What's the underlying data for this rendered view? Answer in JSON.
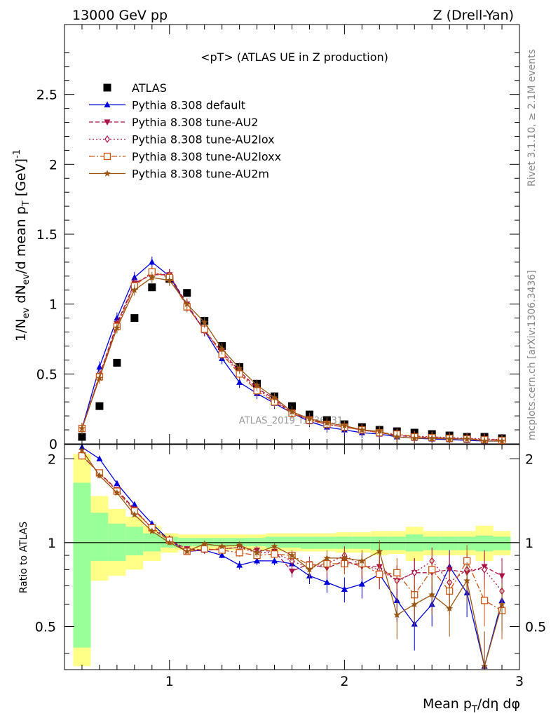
{
  "header": {
    "left": "13000 GeV pp",
    "right": "Z (Drell-Yan)"
  },
  "side_labels": {
    "rivet": "Rivet 3.1.10, ≥ 2.1M events",
    "mcplots": "mcplots.cern.ch [arXiv:1306.3436]"
  },
  "watermark": "ATLAS_2019_I1736531",
  "colors": {
    "atlas": "#000000",
    "default": "#0000dd",
    "au2": "#aa1144",
    "au2lox": "#aa1144",
    "au2loxx": "#cc5511",
    "au2m": "#995511",
    "band_inner": "#99ff99",
    "band_outer": "#ffff88"
  },
  "chart_data": [
    {
      "type": "scatter",
      "title": "<pT> (ATLAS UE in Z production)",
      "ylabel": "1/N_ev dN_ev/d mean p_T [GeV]^-1",
      "xlim": [
        0.4,
        3.0
      ],
      "ylim": [
        0,
        3.0
      ],
      "yticks": [
        "0",
        "0.5",
        "1",
        "1.5",
        "2",
        "2.5"
      ],
      "legend_position": "top-left",
      "x": [
        0.5,
        0.6,
        0.7,
        0.8,
        0.9,
        1.0,
        1.1,
        1.2,
        1.3,
        1.4,
        1.5,
        1.6,
        1.7,
        1.8,
        1.9,
        2.0,
        2.1,
        2.2,
        2.3,
        2.4,
        2.5,
        2.6,
        2.7,
        2.8,
        2.9
      ],
      "series": [
        {
          "name": "ATLAS",
          "key": "atlas",
          "marker": "square",
          "values": [
            0.05,
            0.27,
            0.58,
            0.9,
            1.12,
            1.18,
            1.08,
            0.88,
            0.7,
            0.55,
            0.43,
            0.34,
            0.27,
            0.21,
            0.17,
            0.14,
            0.12,
            0.1,
            0.09,
            0.08,
            0.07,
            0.06,
            0.05,
            0.05,
            0.04
          ]
        },
        {
          "name": "Pythia 8.308 default",
          "key": "default",
          "marker": "triangle-up",
          "dash": "",
          "values": [
            0.11,
            0.55,
            0.9,
            1.19,
            1.3,
            1.2,
            0.99,
            0.81,
            0.61,
            0.44,
            0.36,
            0.29,
            0.22,
            0.16,
            0.12,
            0.1,
            0.08,
            0.07,
            0.05,
            0.04,
            0.035,
            0.03,
            0.025,
            0.02,
            0.02
          ]
        },
        {
          "name": "Pythia 8.308 tune-AU2",
          "key": "au2",
          "marker": "triangle-down",
          "dash": "6,3",
          "values": [
            0.11,
            0.49,
            0.86,
            1.15,
            1.21,
            1.21,
            1.0,
            0.81,
            0.66,
            0.52,
            0.4,
            0.32,
            0.22,
            0.18,
            0.14,
            0.12,
            0.1,
            0.08,
            0.06,
            0.05,
            0.045,
            0.04,
            0.035,
            0.03,
            0.03
          ]
        },
        {
          "name": "Pythia 8.308 tune-AU2lox",
          "key": "au2lox",
          "marker": "diamond",
          "dash": "2,3",
          "values": [
            0.11,
            0.48,
            0.85,
            1.14,
            1.22,
            1.21,
            0.99,
            0.81,
            0.65,
            0.51,
            0.39,
            0.31,
            0.22,
            0.17,
            0.14,
            0.12,
            0.1,
            0.08,
            0.065,
            0.055,
            0.05,
            0.045,
            0.04,
            0.035,
            0.03
          ]
        },
        {
          "name": "Pythia 8.308 tune-AU2loxx",
          "key": "au2loxx",
          "marker": "square-open",
          "dash": "8,3,2,3",
          "values": [
            0.11,
            0.48,
            0.84,
            1.13,
            1.23,
            1.19,
            0.98,
            0.82,
            0.64,
            0.5,
            0.38,
            0.3,
            0.22,
            0.17,
            0.14,
            0.12,
            0.1,
            0.08,
            0.07,
            0.05,
            0.045,
            0.04,
            0.035,
            0.03,
            0.025
          ]
        },
        {
          "name": "Pythia 8.308 tune-AU2m",
          "key": "au2m",
          "marker": "star",
          "dash": "",
          "values": [
            0.11,
            0.47,
            0.83,
            1.1,
            1.19,
            1.17,
            1.0,
            0.87,
            0.68,
            0.54,
            0.42,
            0.33,
            0.23,
            0.18,
            0.15,
            0.13,
            0.1,
            0.09,
            0.05,
            0.04,
            0.04,
            0.035,
            0.035,
            0.02,
            0.02
          ]
        }
      ]
    },
    {
      "type": "line",
      "ylabel": "Ratio to ATLAS",
      "xlabel": "Mean p_T/dη dφ",
      "xlim": [
        0.4,
        3.0
      ],
      "ylim": [
        0.35,
        2.25
      ],
      "xticks": [
        "1",
        "2",
        "3"
      ],
      "yticks": [
        "0.5",
        "1",
        "2"
      ],
      "reference_line": 1,
      "band_x_edges": [
        0.45,
        0.55,
        0.65,
        0.75,
        0.85,
        0.95,
        1.05,
        1.15,
        1.25,
        1.35,
        1.45,
        1.55,
        1.65,
        1.75,
        1.85,
        1.95,
        2.05,
        2.15,
        2.25,
        2.35,
        2.45,
        2.55,
        2.65,
        2.75,
        2.85,
        2.95
      ],
      "band_inner": [
        [
          0.42,
          1.64
        ],
        [
          0.86,
          1.28
        ],
        [
          0.86,
          1.17
        ],
        [
          0.9,
          1.14
        ],
        [
          0.93,
          1.08
        ],
        [
          0.96,
          1.05
        ],
        [
          0.97,
          1.04
        ],
        [
          0.97,
          1.04
        ],
        [
          0.97,
          1.04
        ],
        [
          0.97,
          1.04
        ],
        [
          0.97,
          1.04
        ],
        [
          0.96,
          1.05
        ],
        [
          0.96,
          1.05
        ],
        [
          0.95,
          1.05
        ],
        [
          0.95,
          1.05
        ],
        [
          0.95,
          1.05
        ],
        [
          0.95,
          1.05
        ],
        [
          0.94,
          1.05
        ],
        [
          0.94,
          1.05
        ],
        [
          0.93,
          1.07
        ],
        [
          0.94,
          1.05
        ],
        [
          0.94,
          1.05
        ],
        [
          0.94,
          1.05
        ],
        [
          0.93,
          1.06
        ],
        [
          0.94,
          1.05
        ]
      ],
      "band_outer": [
        [
          0.36,
          2.08
        ],
        [
          0.73,
          1.47
        ],
        [
          0.76,
          1.32
        ],
        [
          0.8,
          1.24
        ],
        [
          0.86,
          1.15
        ],
        [
          0.92,
          1.08
        ],
        [
          0.94,
          1.07
        ],
        [
          0.94,
          1.07
        ],
        [
          0.94,
          1.07
        ],
        [
          0.94,
          1.07
        ],
        [
          0.94,
          1.07
        ],
        [
          0.93,
          1.08
        ],
        [
          0.93,
          1.08
        ],
        [
          0.93,
          1.08
        ],
        [
          0.93,
          1.08
        ],
        [
          0.92,
          1.09
        ],
        [
          0.92,
          1.09
        ],
        [
          0.9,
          1.1
        ],
        [
          0.91,
          1.1
        ],
        [
          0.86,
          1.14
        ],
        [
          0.9,
          1.1
        ],
        [
          0.9,
          1.1
        ],
        [
          0.9,
          1.1
        ],
        [
          0.86,
          1.15
        ],
        [
          0.9,
          1.1
        ]
      ],
      "x": [
        0.5,
        0.6,
        0.7,
        0.8,
        0.9,
        1.0,
        1.1,
        1.2,
        1.3,
        1.4,
        1.5,
        1.6,
        1.7,
        1.8,
        1.9,
        2.0,
        2.1,
        2.2,
        2.3,
        2.4,
        2.5,
        2.6,
        2.7,
        2.8,
        2.9
      ],
      "series": [
        {
          "key": "default",
          "marker": "triangle-up",
          "dash": "",
          "values": [
            2.2,
            2.0,
            1.63,
            1.37,
            1.17,
            1.02,
            0.93,
            0.94,
            0.9,
            0.83,
            0.86,
            0.86,
            0.84,
            0.76,
            0.72,
            0.68,
            0.71,
            0.77,
            0.62,
            0.51,
            0.6,
            0.82,
            0.66,
            0.36,
            0.62
          ],
          "err": [
            0.06,
            0.04,
            0.03,
            0.02,
            0.02,
            0.02,
            0.02,
            0.02,
            0.02,
            0.03,
            0.03,
            0.03,
            0.04,
            0.05,
            0.06,
            0.07,
            0.08,
            0.09,
            0.1,
            0.1,
            0.1,
            0.12,
            0.12,
            0.12,
            0.12
          ]
        },
        {
          "key": "au2",
          "marker": "triangle-down",
          "dash": "6,3",
          "values": [
            2.05,
            1.78,
            1.55,
            1.32,
            1.12,
            1.02,
            0.95,
            0.94,
            0.95,
            0.96,
            0.94,
            0.93,
            0.79,
            0.84,
            0.81,
            0.86,
            0.82,
            0.82,
            0.73,
            0.78,
            0.78,
            0.8,
            0.78,
            0.82,
            0.76
          ],
          "err": [
            0.06,
            0.04,
            0.03,
            0.02,
            0.02,
            0.02,
            0.02,
            0.02,
            0.02,
            0.03,
            0.03,
            0.03,
            0.04,
            0.05,
            0.06,
            0.07,
            0.08,
            0.09,
            0.1,
            0.1,
            0.1,
            0.12,
            0.12,
            0.12,
            0.12
          ]
        },
        {
          "key": "au2lox",
          "marker": "diamond",
          "dash": "2,3",
          "values": [
            2.05,
            1.77,
            1.54,
            1.31,
            1.13,
            1.03,
            0.93,
            0.94,
            0.95,
            0.96,
            0.92,
            0.92,
            0.86,
            0.81,
            0.84,
            0.9,
            0.83,
            0.8,
            0.73,
            0.78,
            0.86,
            0.72,
            0.8,
            0.8,
            0.67
          ],
          "err": [
            0.06,
            0.04,
            0.03,
            0.02,
            0.02,
            0.02,
            0.02,
            0.02,
            0.02,
            0.03,
            0.03,
            0.03,
            0.04,
            0.05,
            0.06,
            0.07,
            0.08,
            0.09,
            0.1,
            0.1,
            0.1,
            0.12,
            0.12,
            0.12,
            0.12
          ]
        },
        {
          "key": "au2loxx",
          "marker": "square-open",
          "dash": "8,3,2,3",
          "values": [
            2.05,
            1.78,
            1.53,
            1.3,
            1.13,
            1.02,
            0.93,
            0.95,
            0.94,
            0.92,
            0.9,
            0.91,
            0.9,
            0.83,
            0.84,
            0.84,
            0.84,
            0.77,
            0.78,
            0.65,
            0.8,
            0.67,
            0.86,
            0.62,
            0.57
          ],
          "err": [
            0.06,
            0.04,
            0.03,
            0.02,
            0.02,
            0.02,
            0.02,
            0.02,
            0.02,
            0.03,
            0.03,
            0.03,
            0.04,
            0.05,
            0.06,
            0.07,
            0.08,
            0.09,
            0.1,
            0.1,
            0.1,
            0.12,
            0.12,
            0.12,
            0.12
          ]
        },
        {
          "key": "au2m",
          "marker": "star",
          "dash": "",
          "values": [
            2.15,
            1.74,
            1.51,
            1.26,
            1.1,
            1.0,
            0.93,
            0.99,
            0.97,
            0.98,
            0.92,
            0.97,
            0.9,
            0.8,
            0.88,
            0.88,
            0.86,
            0.93,
            0.55,
            0.6,
            0.65,
            0.58,
            0.73,
            0.36,
            0.6
          ],
          "err": [
            0.06,
            0.04,
            0.03,
            0.02,
            0.02,
            0.02,
            0.02,
            0.02,
            0.02,
            0.03,
            0.03,
            0.03,
            0.04,
            0.05,
            0.06,
            0.07,
            0.08,
            0.09,
            0.1,
            0.1,
            0.1,
            0.12,
            0.12,
            0.12,
            0.12
          ]
        }
      ]
    }
  ]
}
